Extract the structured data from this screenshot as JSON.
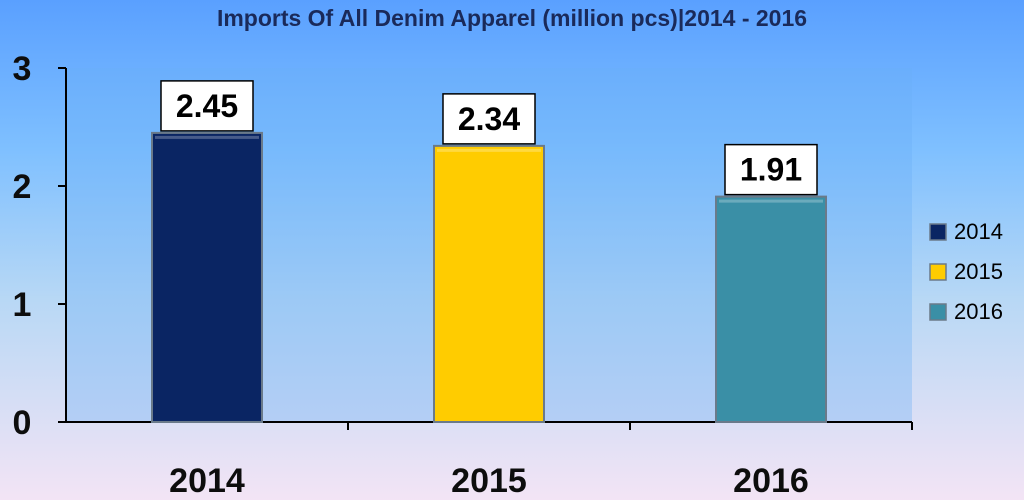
{
  "chart_data": {
    "type": "bar",
    "title": "Imports Of All Denim Apparel (million pcs)|2014 - 2016",
    "xlabel": "",
    "ylabel": "",
    "categories": [
      "2014",
      "2015",
      "2016"
    ],
    "values": [
      2.45,
      2.34,
      1.91
    ],
    "data_labels": [
      "2.45",
      "2.34",
      "1.91"
    ],
    "colors": [
      "#0a2563",
      "#ffcc00",
      "#3a8fa6"
    ],
    "ylim": [
      0,
      3
    ],
    "yticks": [
      "0",
      "1",
      "2",
      "3"
    ],
    "grid": false,
    "legend": {
      "placement": "right",
      "entries": [
        "2014",
        "2015",
        "2016"
      ]
    }
  }
}
